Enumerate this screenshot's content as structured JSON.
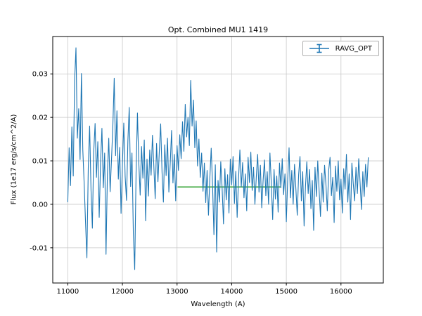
{
  "figure": {
    "title": "Opt. Combined MU1 1419",
    "xlabel": "Wavelength (A)",
    "ylabel": "Flux (1e17 erg/s/cm^2/A)",
    "legend": {
      "label": "RAVG_OPT"
    },
    "colors": {
      "line": "#1f77b4",
      "overlay": "#2ca02c",
      "grid": "#c8c8c8",
      "frame": "#000000",
      "background": "#ffffff"
    }
  },
  "chart_data": {
    "type": "line",
    "title": "Opt. Combined MU1 1419",
    "xlabel": "Wavelength (A)",
    "ylabel": "Flux (1e17 erg/s/cm^2/A)",
    "grid": true,
    "legend_position": "upper right",
    "xlim": [
      10725,
      16775
    ],
    "ylim": [
      -0.0181,
      0.0386
    ],
    "x_ticks": [
      11000,
      12000,
      13000,
      14000,
      15000,
      16000
    ],
    "y_ticks": [
      -0.01,
      0.0,
      0.01,
      0.02,
      0.03
    ],
    "series": [
      {
        "name": "RAVG_OPT",
        "style": "errorbar-line",
        "color": "#1f77b4",
        "x_start": 11000,
        "x_step": 25,
        "values": [
          0.0005,
          0.013,
          0.0043,
          0.0178,
          0.0065,
          0.0284,
          0.036,
          0.0152,
          0.022,
          0.0103,
          0.0301,
          0.0125,
          0.0048,
          -0.0042,
          -0.0123,
          0.0083,
          0.018,
          0.0035,
          -0.0055,
          0.0121,
          0.0186,
          0.0062,
          0.0144,
          -0.003,
          0.0095,
          0.0175,
          0.0038,
          0.0118,
          -0.0115,
          0.0068,
          0.0152,
          0.0029,
          0.0102,
          0.018,
          0.029,
          0.0112,
          0.0215,
          0.0058,
          0.0131,
          -0.0021,
          0.0093,
          0.0187,
          0.0064,
          0.0009,
          0.0146,
          0.0223,
          0.0041,
          0.0118,
          -0.0066,
          -0.015,
          0.0072,
          0.021,
          0.0095,
          0.0021,
          0.0133,
          0.006,
          0.0148,
          -0.0038,
          0.0104,
          0.0019,
          0.0125,
          0.0067,
          0.0159,
          0.0088,
          0.0013,
          0.014,
          0.0052,
          0.0121,
          0.0185,
          0.0075,
          0.0005,
          0.0137,
          0.0066,
          0.0152,
          0.0028,
          0.0094,
          0.017,
          0.0049,
          0.0115,
          0.0008,
          0.0135,
          0.0078,
          0.016,
          0.0105,
          0.019,
          0.0122,
          0.023,
          0.0155,
          0.02,
          0.0135,
          0.0285,
          0.018,
          0.024,
          0.013,
          0.0192,
          0.0088,
          0.015,
          0.0062,
          0.0118,
          0.003,
          0.0095,
          0.0004,
          0.0078,
          -0.0025,
          0.006,
          0.0129,
          0.0042,
          -0.007,
          0.0091,
          -0.011,
          0.0055,
          0.0005,
          0.0098,
          0.0036,
          -0.0045,
          0.0082,
          0.001,
          0.0068,
          -0.002,
          0.0104,
          0.0045,
          0.011,
          0.0002,
          0.0076,
          -0.003,
          0.0058,
          0.0125,
          0.004,
          0.0096,
          0.0015,
          0.007,
          -0.0015,
          0.0108,
          0.005,
          0.012,
          0.0032,
          0.0085,
          0.0,
          0.0062,
          0.0115,
          0.0028,
          0.009,
          -0.0008,
          0.0055,
          0.0102,
          0.002,
          0.0075,
          0.0,
          0.0118,
          0.0048,
          -0.0035,
          0.008,
          0.0012,
          0.0065,
          -0.0018,
          0.0095,
          0.0038,
          0.0105,
          0.0022,
          0.007,
          -0.004,
          0.0058,
          0.013,
          0.0015,
          0.0078,
          0.0,
          0.0092,
          0.0035,
          -0.0025,
          0.0068,
          0.011,
          0.0008,
          0.0075,
          -0.005,
          0.004,
          0.0098,
          0.0025,
          0.008,
          -0.001,
          0.0055,
          -0.006,
          0.0085,
          0.0018,
          0.01,
          0.0032,
          -0.0028,
          0.0072,
          0.0005,
          0.009,
          0.0045,
          -0.0015,
          0.0078,
          0.0108,
          0.002,
          0.0062,
          -0.0042,
          0.0088,
          0.003,
          0.01,
          0.001,
          0.0058,
          -0.002,
          0.0082,
          0.0035,
          0.0115,
          0.0005,
          0.007,
          -0.0035,
          0.0095,
          0.0048,
          0.0008,
          0.0085,
          0.0025,
          0.0105,
          0.005,
          -0.0012,
          0.0075,
          0.0018,
          0.0092,
          0.004,
          0.0108
        ]
      }
    ],
    "overlays": [
      {
        "type": "hline_segment",
        "x1": 13010,
        "x2": 14890,
        "y": 0.004,
        "color": "#2ca02c"
      }
    ]
  }
}
